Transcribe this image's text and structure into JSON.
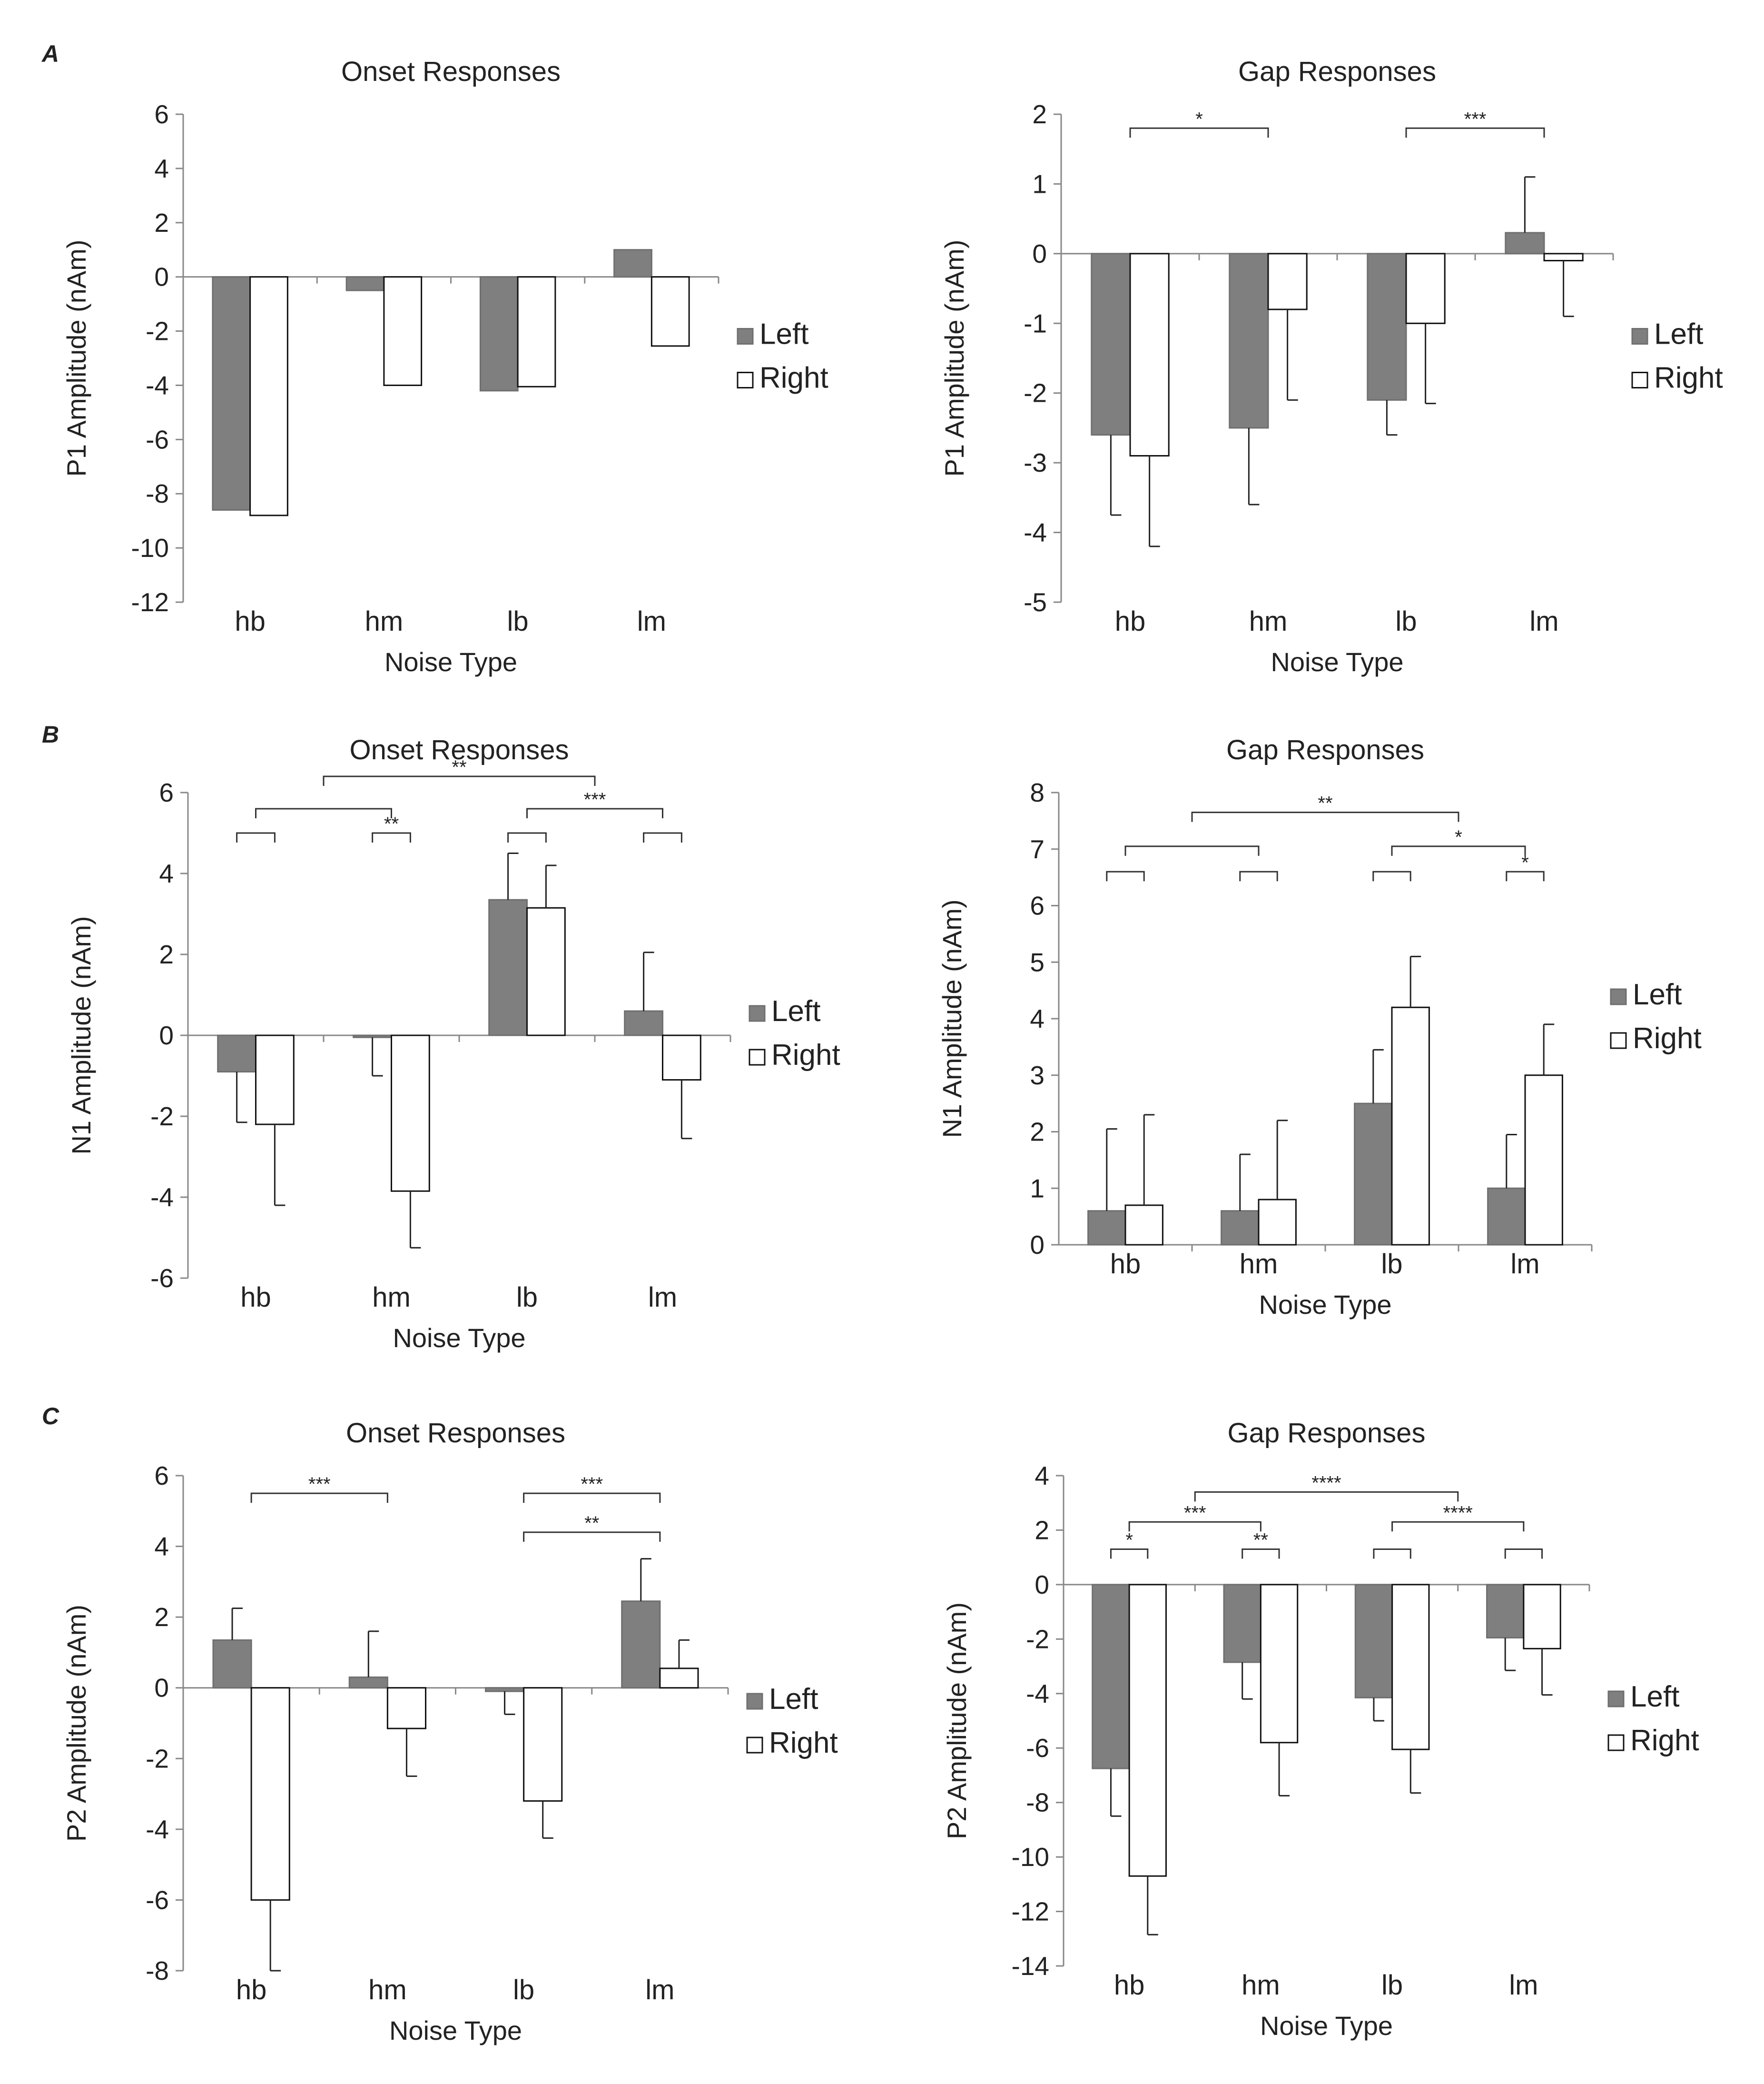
{
  "figure": {
    "panel_labels": [
      "A",
      "B",
      "C"
    ]
  },
  "chart_data": [
    {
      "id": "A-onset",
      "type": "bar",
      "title": "Onset Responses",
      "xlabel": "Noise Type",
      "ylabel": "P1 Amplitude (nAm)",
      "categories": [
        "hb",
        "hm",
        "lb",
        "lm"
      ],
      "ylim": [
        -12,
        6
      ],
      "yticks": [
        6,
        4,
        2,
        0,
        -2,
        -4,
        -6,
        -8,
        -10,
        -12
      ],
      "series": [
        {
          "name": "Left",
          "color": "#7f7f7f",
          "values": [
            -8.6,
            -0.5,
            -4.2,
            1.0
          ],
          "errors": null
        },
        {
          "name": "Right",
          "color": "#ffffff",
          "values": [
            -8.8,
            -4.0,
            -4.05,
            -2.55
          ],
          "errors": null
        }
      ],
      "legend": "right",
      "brackets": []
    },
    {
      "id": "A-gap",
      "type": "bar",
      "title": "Gap Responses",
      "xlabel": "Noise Type",
      "ylabel": "P1 Amplitude (nAm)",
      "categories": [
        "hb",
        "hm",
        "lb",
        "lm"
      ],
      "ylim": [
        -5,
        2
      ],
      "yticks": [
        2,
        1,
        0,
        -1,
        -2,
        -3,
        -4,
        -5
      ],
      "series": [
        {
          "name": "Left",
          "color": "#7f7f7f",
          "values": [
            -2.6,
            -2.5,
            -2.1,
            0.3
          ],
          "errors": [
            1.15,
            1.1,
            0.5,
            0.8
          ]
        },
        {
          "name": "Right",
          "color": "#ffffff",
          "values": [
            -2.9,
            -0.8,
            -1.0,
            -0.1
          ],
          "errors": [
            1.3,
            1.3,
            1.15,
            0.8
          ]
        }
      ],
      "legend": "right",
      "brackets": [
        {
          "from": 0,
          "to": 1,
          "y": 1.8,
          "label": "*"
        },
        {
          "from": 2,
          "to": 3,
          "y": 1.8,
          "label": "***"
        }
      ]
    },
    {
      "id": "B-onset",
      "type": "bar",
      "title": "Onset Responses",
      "xlabel": "Noise Type",
      "ylabel": "N1 Amplitude (nAm)",
      "categories": [
        "hb",
        "hm",
        "lb",
        "lm"
      ],
      "ylim": [
        -6,
        6
      ],
      "yticks": [
        6,
        4,
        2,
        0,
        -2,
        -4,
        -6
      ],
      "series": [
        {
          "name": "Left",
          "color": "#7f7f7f",
          "values": [
            -0.9,
            -0.05,
            3.35,
            0.6
          ],
          "errors": [
            1.25,
            0.95,
            1.15,
            1.45
          ]
        },
        {
          "name": "Right",
          "color": "#ffffff",
          "values": [
            -2.2,
            -3.85,
            3.15,
            -1.1
          ],
          "errors": [
            2.0,
            1.4,
            1.05,
            1.45
          ]
        }
      ],
      "legend": "right",
      "brackets": [
        {
          "from": 0,
          "to": 0,
          "y": 5.0,
          "label": ""
        },
        {
          "from": 1,
          "to": 1,
          "y": 5.0,
          "label": "**"
        },
        {
          "from": 2,
          "to": 2,
          "y": 5.0,
          "label": ""
        },
        {
          "from": 3,
          "to": 3,
          "y": 5.0,
          "label": ""
        },
        {
          "from": 0,
          "to": 1,
          "y": 5.6,
          "label": ""
        },
        {
          "from": 2,
          "to": 3,
          "y": 5.6,
          "label": "***"
        },
        {
          "from": 0.5,
          "to": 2.5,
          "y": 6.4,
          "label": "**"
        }
      ]
    },
    {
      "id": "B-gap",
      "type": "bar",
      "title": "Gap Responses",
      "xlabel": "Noise Type",
      "ylabel": "N1 Amplitude (nAm)",
      "categories": [
        "hb",
        "hm",
        "lb",
        "lm"
      ],
      "ylim": [
        0,
        8
      ],
      "yticks": [
        8,
        7,
        6,
        5,
        4,
        3,
        2,
        1,
        0
      ],
      "series": [
        {
          "name": "Left",
          "color": "#7f7f7f",
          "values": [
            0.6,
            0.6,
            2.5,
            1.0
          ],
          "errors": [
            1.45,
            1.0,
            0.95,
            0.95
          ]
        },
        {
          "name": "Right",
          "color": "#ffffff",
          "values": [
            0.7,
            0.8,
            4.2,
            3.0
          ],
          "errors": [
            1.6,
            1.4,
            0.9,
            0.9
          ]
        }
      ],
      "legend": "right",
      "brackets": [
        {
          "from": 0,
          "to": 0,
          "y": 6.6,
          "label": ""
        },
        {
          "from": 1,
          "to": 1,
          "y": 6.6,
          "label": ""
        },
        {
          "from": 2,
          "to": 2,
          "y": 6.6,
          "label": ""
        },
        {
          "from": 3,
          "to": 3,
          "y": 6.6,
          "label": "*"
        },
        {
          "from": 0,
          "to": 1,
          "y": 7.05,
          "label": ""
        },
        {
          "from": 2,
          "to": 3,
          "y": 7.05,
          "label": "*"
        },
        {
          "from": 0.5,
          "to": 2.5,
          "y": 7.65,
          "label": "**"
        }
      ]
    },
    {
      "id": "C-onset",
      "type": "bar",
      "title": "Onset Responses",
      "xlabel": "Noise Type",
      "ylabel": "P2 Amplitude (nAm)",
      "categories": [
        "hb",
        "hm",
        "lb",
        "lm"
      ],
      "ylim": [
        -8,
        6
      ],
      "yticks": [
        6,
        4,
        2,
        0,
        -2,
        -4,
        -6,
        -8
      ],
      "series": [
        {
          "name": "Left",
          "color": "#7f7f7f",
          "values": [
            1.35,
            0.3,
            -0.1,
            2.45
          ],
          "errors": [
            0.9,
            1.3,
            0.65,
            1.2
          ]
        },
        {
          "name": "Right",
          "color": "#ffffff",
          "values": [
            -6.0,
            -1.15,
            -3.2,
            0.55
          ],
          "errors": [
            2.0,
            1.35,
            1.05,
            0.8
          ]
        }
      ],
      "legend": "right",
      "brackets": [
        {
          "from": 0,
          "to": 1,
          "y": 5.5,
          "label": "***"
        },
        {
          "from": 2,
          "to": 3,
          "y": 4.4,
          "label": "**"
        },
        {
          "from": 2,
          "to": 3,
          "y": 5.5,
          "label": "***"
        }
      ]
    },
    {
      "id": "C-gap",
      "type": "bar",
      "title": "Gap Responses",
      "xlabel": "Noise Type",
      "ylabel": "P2 Amplitude (nAm)",
      "categories": [
        "hb",
        "hm",
        "lb",
        "lm"
      ],
      "ylim": [
        -14,
        4
      ],
      "yticks": [
        4,
        2,
        0,
        -2,
        -4,
        -6,
        -8,
        -10,
        -12,
        -14
      ],
      "series": [
        {
          "name": "Left",
          "color": "#7f7f7f",
          "values": [
            -6.75,
            -2.85,
            -4.15,
            -1.95
          ],
          "errors": [
            1.75,
            1.35,
            0.85,
            1.2
          ]
        },
        {
          "name": "Right",
          "color": "#ffffff",
          "values": [
            -10.7,
            -5.8,
            -6.05,
            -2.35
          ],
          "errors": [
            2.15,
            1.95,
            1.6,
            1.7
          ]
        }
      ],
      "legend": "right",
      "brackets": [
        {
          "from": 0,
          "to": 0,
          "y": 1.3,
          "label": "*"
        },
        {
          "from": 1,
          "to": 1,
          "y": 1.3,
          "label": "**"
        },
        {
          "from": 2,
          "to": 2,
          "y": 1.3,
          "label": ""
        },
        {
          "from": 3,
          "to": 3,
          "y": 1.3,
          "label": ""
        },
        {
          "from": 0,
          "to": 1,
          "y": 2.3,
          "label": "***"
        },
        {
          "from": 2,
          "to": 3,
          "y": 2.3,
          "label": "****"
        },
        {
          "from": 0.5,
          "to": 2.5,
          "y": 3.4,
          "label": "****"
        }
      ]
    }
  ]
}
